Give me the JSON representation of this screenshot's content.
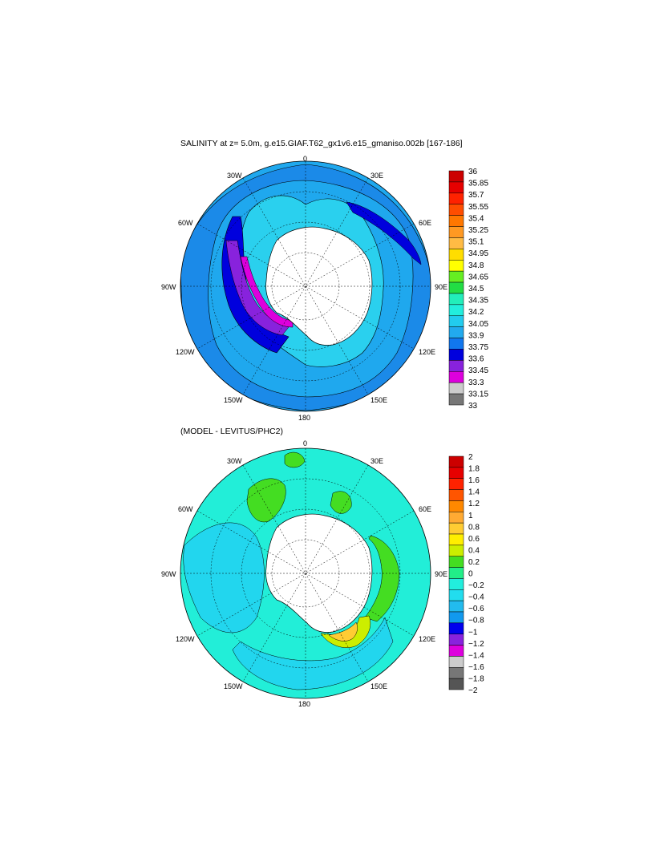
{
  "top_panel": {
    "title": "SALINITY at z=   5.0m, g.e15.GIAF.T62_gx1v6.e15_gmaniso.002b [167-186]",
    "lon_labels": [
      "0",
      "30E",
      "60E",
      "90E",
      "120E",
      "150E",
      "180",
      "150W",
      "120W",
      "90W",
      "60W",
      "30W"
    ],
    "colorbar": {
      "labels": [
        "36",
        "35.85",
        "35.7",
        "35.55",
        "35.4",
        "35.25",
        "35.1",
        "34.95",
        "34.8",
        "34.65",
        "34.5",
        "34.35",
        "34.2",
        "34.05",
        "33.9",
        "33.75",
        "33.6",
        "33.45",
        "33.3",
        "33.15",
        "33"
      ],
      "colors": [
        "#cc0000",
        "#e60000",
        "#ff2200",
        "#ff4d00",
        "#ff7700",
        "#ff9922",
        "#ffbb44",
        "#ffdd00",
        "#ffff00",
        "#66ee22",
        "#22dd44",
        "#22eebb",
        "#22eedd",
        "#22ccee",
        "#22aaee",
        "#1177ee",
        "#0000dd",
        "#8822dd",
        "#dd00dd",
        "#cccccc",
        "#777777"
      ]
    }
  },
  "bottom_panel": {
    "title": "(MODEL - LEVITUS/PHC2)",
    "lon_labels": [
      "0",
      "30E",
      "60E",
      "90E",
      "120E",
      "150E",
      "180",
      "150W",
      "120W",
      "90W",
      "60W",
      "30W"
    ],
    "colorbar": {
      "labels": [
        "2",
        "1.8",
        "1.6",
        "1.4",
        "1.2",
        "1",
        "0.8",
        "0.6",
        "0.4",
        "0.2",
        "0",
        "−0.2",
        "−0.4",
        "−0.6",
        "−0.8",
        "−1",
        "−1.2",
        "−1.4",
        "−1.6",
        "−1.8",
        "−2"
      ],
      "colors": [
        "#cc0000",
        "#e60000",
        "#ff2200",
        "#ff5500",
        "#ff8800",
        "#ffaa33",
        "#ffcc33",
        "#ffee00",
        "#ccee00",
        "#44dd22",
        "#22ee88",
        "#22eedd",
        "#22ddee",
        "#22bbee",
        "#1199ee",
        "#0000ee",
        "#8822dd",
        "#dd00dd",
        "#cccccc",
        "#777777",
        "#555555"
      ]
    }
  },
  "colors": {
    "land": "#ffffff",
    "top_ocean": "#1fa8ee",
    "top_outer": "#1b8ae8",
    "top_inner": "#2ad0ee",
    "bottom_ocean": "#22eed8",
    "bottom_cyan": "#22d6ee"
  }
}
